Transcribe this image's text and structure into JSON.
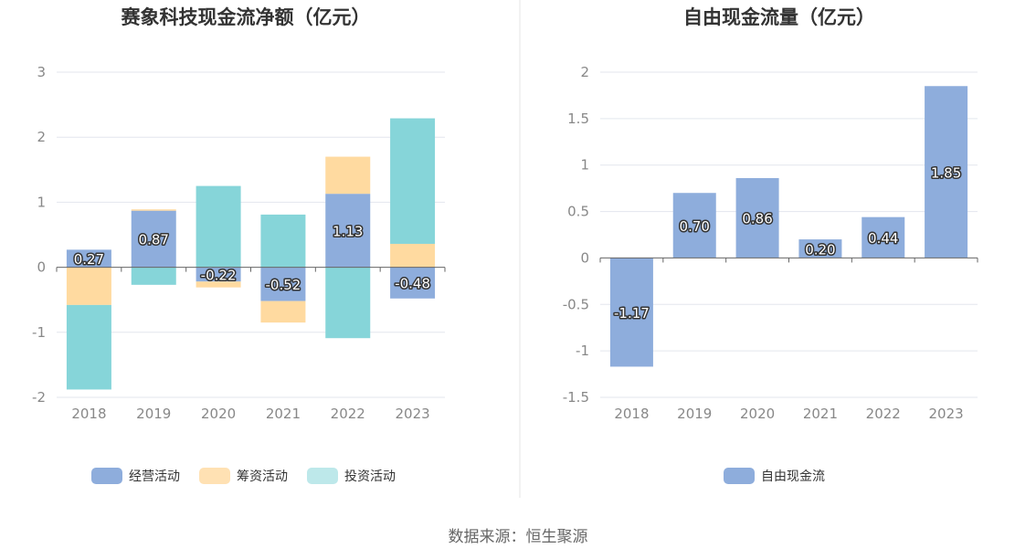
{
  "source": "数据来源：恒生聚源",
  "colors": {
    "operating": "#8eaddc",
    "financing": "#ffdaa0",
    "investing": "#86d5d9",
    "free_cash_flow": "#8eaddc",
    "grid": "#e3e6ee",
    "axis": "#666666"
  },
  "chart_data": [
    {
      "type": "bar",
      "stacked": true,
      "title": "赛象科技现金流净额（亿元）",
      "categories": [
        "2018",
        "2019",
        "2020",
        "2021",
        "2022",
        "2023"
      ],
      "ylim": [
        -2,
        3
      ],
      "yticks": [
        "-2",
        "-1",
        "0",
        "1",
        "2",
        "3"
      ],
      "grid": true,
      "legend_position": "bottom",
      "series": [
        {
          "name": "经营活动",
          "color_key": "operating",
          "values": [
            0.27,
            0.87,
            -0.22,
            -0.52,
            1.13,
            -0.48
          ],
          "labels": [
            "0.27",
            "0.87",
            "-0.22",
            "-0.52",
            "1.13",
            "-0.48"
          ]
        },
        {
          "name": "筹资活动",
          "color_key": "financing",
          "values": [
            -0.58,
            0.02,
            -0.09,
            -0.33,
            0.57,
            0.36
          ]
        },
        {
          "name": "投资活动",
          "color_key": "investing",
          "values": [
            -1.3,
            -0.27,
            1.25,
            0.81,
            -1.09,
            1.93
          ]
        }
      ]
    },
    {
      "type": "bar",
      "title": "自由现金流量（亿元）",
      "categories": [
        "2018",
        "2019",
        "2020",
        "2021",
        "2022",
        "2023"
      ],
      "ylim": [
        -1.5,
        2
      ],
      "yticks": [
        "-1.5",
        "-1",
        "-0.5",
        "0",
        "0.5",
        "1",
        "1.5",
        "2"
      ],
      "grid": true,
      "legend_position": "bottom",
      "series": [
        {
          "name": "自由现金流",
          "color_key": "free_cash_flow",
          "values": [
            -1.17,
            0.7,
            0.86,
            0.2,
            0.44,
            1.85
          ],
          "labels": [
            "-1.17",
            "0.70",
            "0.86",
            "0.20",
            "0.44",
            "1.85"
          ]
        }
      ]
    }
  ]
}
